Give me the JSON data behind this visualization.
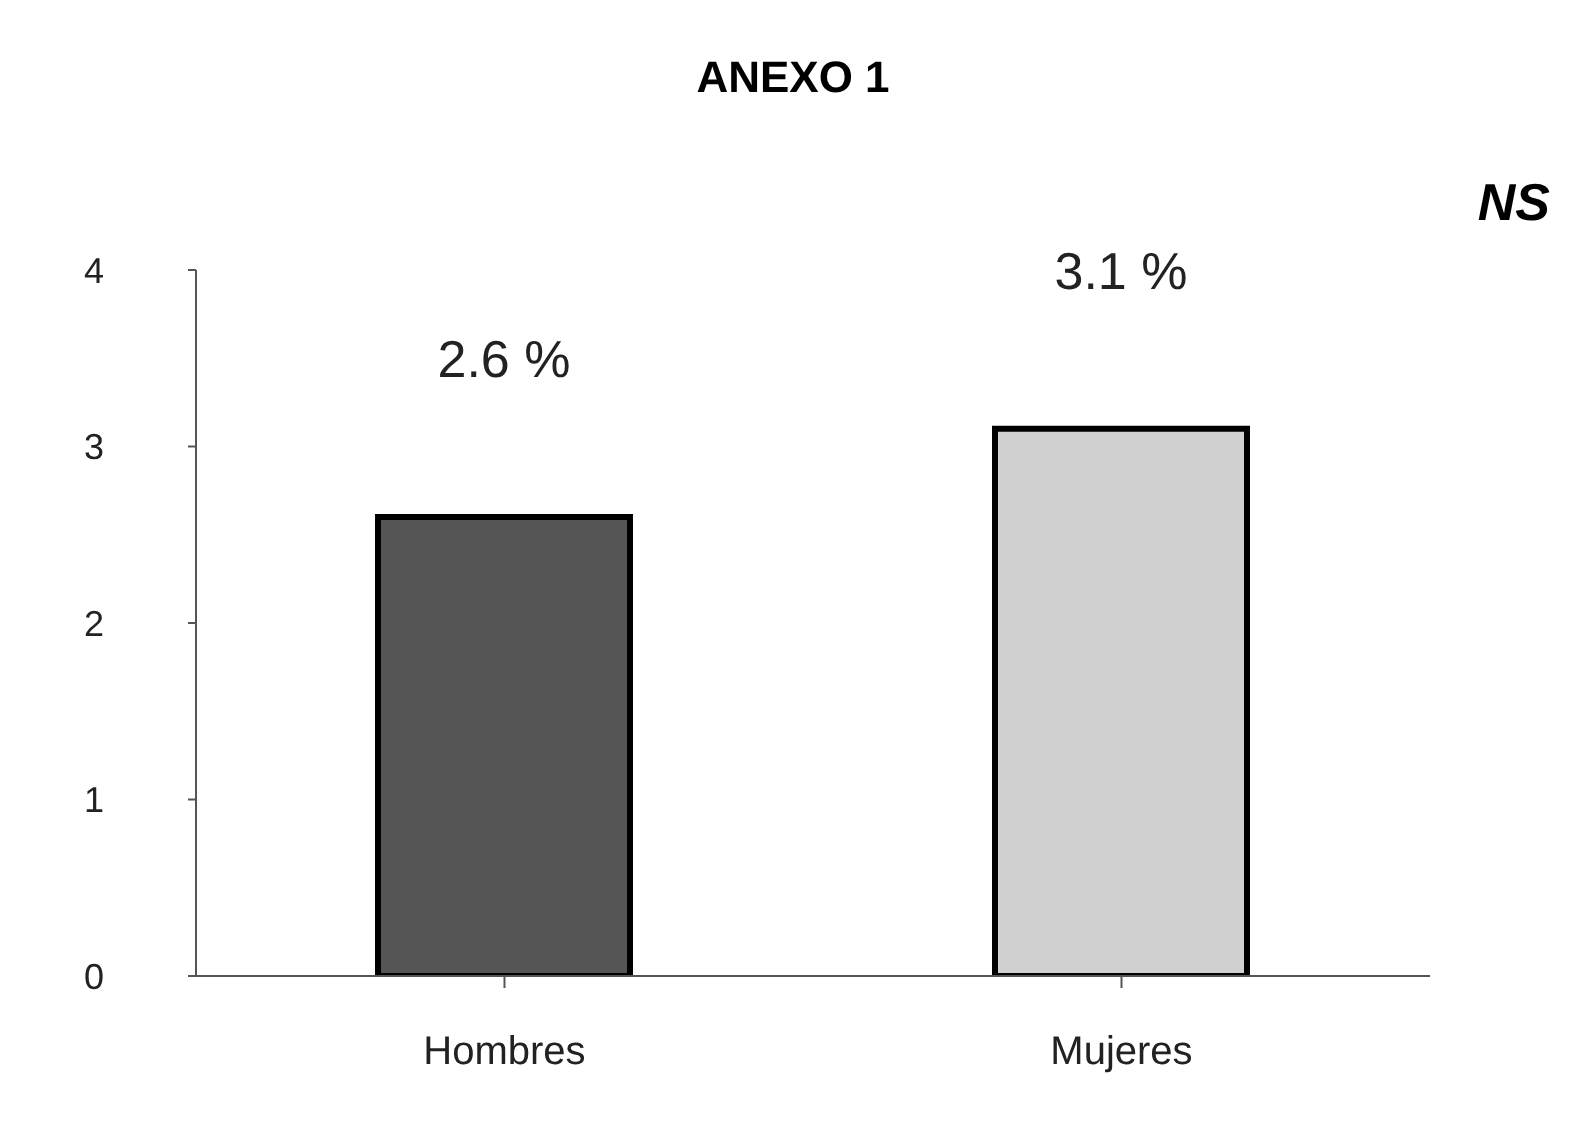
{
  "chart_data": {
    "type": "bar",
    "title": "ANEXO 1",
    "annotations": [
      "NS"
    ],
    "categories": [
      "Hombres",
      "Mujeres"
    ],
    "values": [
      2.6,
      3.1
    ],
    "value_labels": [
      "2.6 %",
      "3.1 %"
    ],
    "colors": [
      "#555555",
      "#d0d0d0"
    ],
    "ylim": [
      0,
      4
    ],
    "yticks": [
      0,
      1,
      2,
      3,
      4
    ],
    "grid": false
  }
}
